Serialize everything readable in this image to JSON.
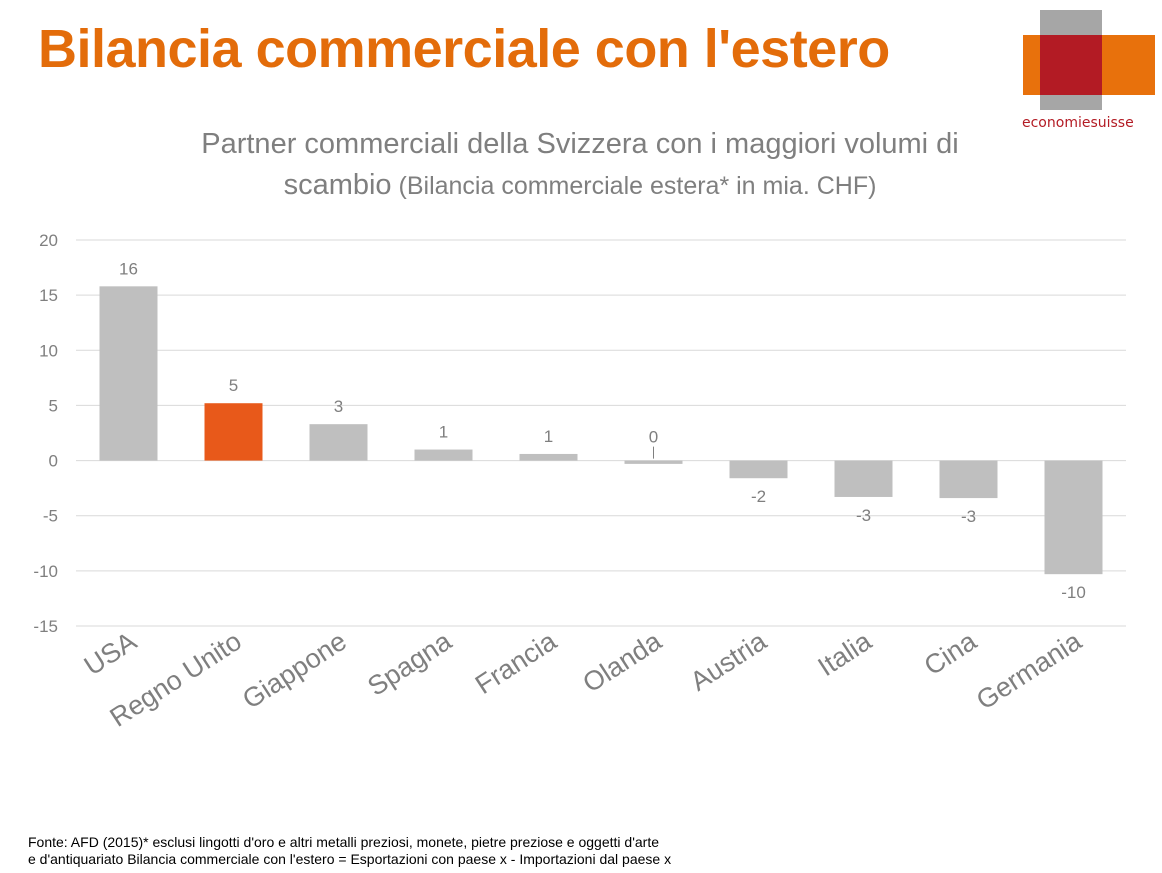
{
  "page": {
    "title": "Bilancia commerciale con l'estero",
    "logo_text": "economiesuisse"
  },
  "colors": {
    "title": "#e36c0a",
    "bar_default": "#bfbfbf",
    "bar_highlight": "#e8591a",
    "grid": "#d9d9d9",
    "axis_text": "#7f7f7f",
    "logo_grey": "#a6a6a6",
    "logo_orange": "#e8710c",
    "logo_red": "#b31b24"
  },
  "chart_data": {
    "type": "bar",
    "title": "Partner commerciali della Svizzera con i maggiori volumi di",
    "subtitle_lead": "scambio",
    "subtitle": " (Bilancia commerciale estera* in mia. CHF)",
    "categories": [
      "USA",
      "Regno Unito",
      "Giappone",
      "Spagna",
      "Francia",
      "Olanda",
      "Austria",
      "Italia",
      "Cina",
      "Germania"
    ],
    "values": [
      15.8,
      5.2,
      3.3,
      1.0,
      0.6,
      -0.3,
      -1.6,
      -3.3,
      -3.4,
      -10.3
    ],
    "data_labels": [
      "16",
      "5",
      "3",
      "1",
      "1",
      "0",
      "-2",
      "-3",
      "-3",
      "-10"
    ],
    "highlight_index": 1,
    "ylim": [
      -15,
      20
    ],
    "yticks": [
      "20",
      "15",
      "10",
      "5",
      "0",
      "-5",
      "-10",
      "-15"
    ],
    "grid": true,
    "xlabel": "",
    "ylabel": ""
  },
  "source": {
    "line1": "Fonte: AFD (2015)* esclusi lingotti d'oro e altri metalli preziosi, monete, pietre preziose e oggetti d'arte",
    "line2": "e d'antiquariato Bilancia commerciale con l'estero = Esportazioni con paese x - Importazioni dal paese x"
  }
}
